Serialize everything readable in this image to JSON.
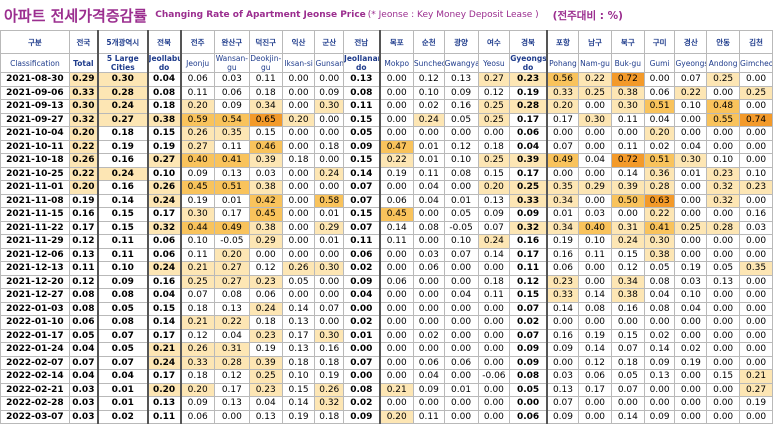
{
  "title": {
    "korean": "아파트 전세가격증감률",
    "english": "Changing Rate of Apartment Jeonse Price",
    "note": "(* Jeonse : Key Money Deposit Lease )",
    "unit": "(전주대비 : %)"
  },
  "header": {
    "kr": [
      "구분",
      "전국",
      "5개광역시",
      "전북",
      "전주",
      "완산구",
      "덕진구",
      "익산",
      "군산",
      "전남",
      "목포",
      "순천",
      "광양",
      "여수",
      "경북",
      "포항",
      "남구",
      "북구",
      "구미",
      "경산",
      "안동",
      "김천"
    ],
    "en": [
      "Classification",
      "Total",
      "5 Large Cities",
      "Jeollabuk-do",
      "Jeonju",
      "Wansan-gu",
      "Deokjin-gu",
      "Iksan-si",
      "Gunsan",
      "Jeollanam-do",
      "Mokpo",
      "Suncheon",
      "Gwangyang",
      "Yeosu",
      "Gyeongsangbuk-do",
      "Pohang",
      "Nam-gu",
      "Buk-gu",
      "Gumi",
      "Gyeongsan",
      "Andong",
      "Gimcheon"
    ]
  },
  "colors": {
    "light": "#fde6b4",
    "medium": "#f9c35c",
    "strong": "#f39a2a",
    "header_text": "#1f3c8c",
    "title_text": "#9b2e8f"
  },
  "rows": [
    {
      "date": "2021-08-30",
      "values": [
        "0.29",
        "0.30",
        "0.04",
        "0.06",
        "0.03",
        "0.11",
        "0.00",
        "0.00",
        "0.13",
        "0.00",
        "0.12",
        "0.13",
        "0.27",
        "0.23",
        "0.56",
        "0.22",
        "0.72",
        "0.00",
        "0.07",
        "0.25",
        "0.00"
      ]
    },
    {
      "date": "2021-09-06",
      "values": [
        "0.33",
        "0.28",
        "0.08",
        "0.11",
        "0.06",
        "0.18",
        "0.00",
        "0.09",
        "0.08",
        "0.00",
        "0.10",
        "0.09",
        "0.12",
        "0.19",
        "0.33",
        "0.25",
        "0.38",
        "0.06",
        "0.22",
        "0.00",
        "0.25"
      ]
    },
    {
      "date": "2021-09-13",
      "values": [
        "0.30",
        "0.24",
        "0.18",
        "0.20",
        "0.09",
        "0.34",
        "0.00",
        "0.30",
        "0.11",
        "0.00",
        "0.02",
        "0.16",
        "0.25",
        "0.28",
        "0.20",
        "0.00",
        "0.30",
        "0.51",
        "0.10",
        "0.48",
        "0.00"
      ]
    },
    {
      "date": "2021-09-27",
      "values": [
        "0.32",
        "0.27",
        "0.38",
        "0.59",
        "0.54",
        "0.65",
        "0.20",
        "0.00",
        "0.15",
        "0.00",
        "0.24",
        "0.05",
        "0.25",
        "0.17",
        "0.17",
        "0.30",
        "0.11",
        "0.04",
        "0.00",
        "0.55",
        "0.74"
      ]
    },
    {
      "date": "2021-10-04",
      "values": [
        "0.20",
        "0.18",
        "0.15",
        "0.26",
        "0.35",
        "0.15",
        "0.00",
        "0.00",
        "0.05",
        "0.00",
        "0.00",
        "0.00",
        "0.00",
        "0.06",
        "0.00",
        "0.00",
        "0.00",
        "0.20",
        "0.00",
        "0.00",
        "0.00"
      ]
    },
    {
      "date": "2021-10-11",
      "values": [
        "0.22",
        "0.19",
        "0.19",
        "0.27",
        "0.11",
        "0.46",
        "0.00",
        "0.18",
        "0.09",
        "0.47",
        "0.01",
        "0.12",
        "0.18",
        "0.04",
        "0.07",
        "0.00",
        "0.11",
        "0.02",
        "0.04",
        "0.00",
        "0.00"
      ]
    },
    {
      "date": "2021-10-18",
      "values": [
        "0.26",
        "0.16",
        "0.27",
        "0.40",
        "0.41",
        "0.39",
        "0.18",
        "0.00",
        "0.15",
        "0.22",
        "0.01",
        "0.10",
        "0.25",
        "0.39",
        "0.49",
        "0.04",
        "0.72",
        "0.51",
        "0.30",
        "0.10",
        "0.00"
      ]
    },
    {
      "date": "2021-10-25",
      "values": [
        "0.22",
        "0.24",
        "0.10",
        "0.09",
        "0.13",
        "0.03",
        "0.00",
        "0.24",
        "0.14",
        "0.19",
        "0.11",
        "0.08",
        "0.15",
        "0.17",
        "0.00",
        "0.00",
        "0.14",
        "0.36",
        "0.01",
        "0.23",
        "0.10"
      ]
    },
    {
      "date": "2021-11-01",
      "values": [
        "0.20",
        "0.16",
        "0.26",
        "0.45",
        "0.51",
        "0.38",
        "0.00",
        "0.00",
        "0.07",
        "0.00",
        "0.04",
        "0.00",
        "0.20",
        "0.25",
        "0.35",
        "0.29",
        "0.39",
        "0.28",
        "0.00",
        "0.32",
        "0.23"
      ]
    },
    {
      "date": "2021-11-08",
      "values": [
        "0.19",
        "0.14",
        "0.24",
        "0.19",
        "0.01",
        "0.42",
        "0.00",
        "0.58",
        "0.07",
        "0.06",
        "0.04",
        "0.01",
        "0.13",
        "0.33",
        "0.34",
        "0.00",
        "0.50",
        "0.63",
        "0.00",
        "0.32",
        "0.00"
      ]
    },
    {
      "date": "2021-11-15",
      "values": [
        "0.16",
        "0.15",
        "0.17",
        "0.30",
        "0.17",
        "0.45",
        "0.00",
        "0.01",
        "0.15",
        "0.45",
        "0.00",
        "0.05",
        "0.09",
        "0.09",
        "0.01",
        "0.03",
        "0.00",
        "0.22",
        "0.00",
        "0.00",
        "0.16"
      ]
    },
    {
      "date": "2021-11-22",
      "values": [
        "0.17",
        "0.15",
        "0.32",
        "0.44",
        "0.49",
        "0.38",
        "0.00",
        "0.29",
        "0.07",
        "0.14",
        "0.08",
        "-0.05",
        "0.07",
        "0.32",
        "0.34",
        "0.40",
        "0.31",
        "0.41",
        "0.25",
        "0.28",
        "0.03"
      ]
    },
    {
      "date": "2021-11-29",
      "values": [
        "0.12",
        "0.11",
        "0.06",
        "0.10",
        "-0.05",
        "0.29",
        "0.00",
        "0.01",
        "0.11",
        "0.11",
        "0.00",
        "0.10",
        "0.24",
        "0.16",
        "0.19",
        "0.10",
        "0.24",
        "0.30",
        "0.00",
        "0.00",
        "0.00"
      ]
    },
    {
      "date": "2021-12-06",
      "values": [
        "0.13",
        "0.11",
        "0.06",
        "0.11",
        "0.20",
        "0.00",
        "0.00",
        "0.00",
        "0.06",
        "0.00",
        "0.03",
        "0.07",
        "0.14",
        "0.17",
        "0.16",
        "0.11",
        "0.15",
        "0.38",
        "0.00",
        "0.00",
        "0.00"
      ]
    },
    {
      "date": "2021-12-13",
      "values": [
        "0.11",
        "0.10",
        "0.24",
        "0.21",
        "0.27",
        "0.12",
        "0.26",
        "0.30",
        "0.02",
        "0.00",
        "0.06",
        "0.00",
        "0.00",
        "0.11",
        "0.06",
        "0.00",
        "0.12",
        "0.05",
        "0.19",
        "0.05",
        "0.35"
      ]
    },
    {
      "date": "2021-12-20",
      "values": [
        "0.12",
        "0.09",
        "0.16",
        "0.25",
        "0.27",
        "0.23",
        "0.05",
        "0.00",
        "0.09",
        "0.06",
        "0.00",
        "0.00",
        "0.18",
        "0.12",
        "0.23",
        "0.00",
        "0.34",
        "0.08",
        "0.03",
        "0.13",
        "0.00"
      ]
    },
    {
      "date": "2021-12-27",
      "values": [
        "0.08",
        "0.08",
        "0.04",
        "0.07",
        "0.08",
        "0.06",
        "0.00",
        "0.00",
        "0.04",
        "0.00",
        "0.00",
        "0.04",
        "0.11",
        "0.15",
        "0.33",
        "0.14",
        "0.38",
        "0.04",
        "0.10",
        "0.00",
        "0.00"
      ]
    },
    {
      "date": "2022-01-03",
      "values": [
        "0.08",
        "0.05",
        "0.15",
        "0.18",
        "0.13",
        "0.24",
        "0.14",
        "0.07",
        "0.00",
        "0.00",
        "0.00",
        "0.00",
        "0.00",
        "0.07",
        "0.14",
        "0.08",
        "0.16",
        "0.08",
        "0.04",
        "0.00",
        "0.00"
      ]
    },
    {
      "date": "2022-01-10",
      "values": [
        "0.06",
        "0.08",
        "0.14",
        "0.21",
        "0.22",
        "0.18",
        "0.13",
        "0.00",
        "0.02",
        "0.00",
        "0.00",
        "0.00",
        "0.00",
        "0.02",
        "0.00",
        "0.00",
        "0.00",
        "0.00",
        "0.00",
        "0.00",
        "0.00"
      ]
    },
    {
      "date": "2022-01-17",
      "values": [
        "0.05",
        "0.07",
        "0.17",
        "0.12",
        "0.04",
        "0.23",
        "0.17",
        "0.30",
        "0.01",
        "0.00",
        "0.02",
        "0.00",
        "0.00",
        "0.07",
        "0.16",
        "0.19",
        "0.15",
        "0.02",
        "0.00",
        "0.00",
        "0.00"
      ]
    },
    {
      "date": "2022-01-24",
      "values": [
        "0.04",
        "0.05",
        "0.21",
        "0.26",
        "0.31",
        "0.19",
        "0.13",
        "0.16",
        "0.00",
        "0.00",
        "0.00",
        "0.00",
        "0.00",
        "0.09",
        "0.09",
        "0.14",
        "0.07",
        "0.14",
        "0.02",
        "0.00",
        "0.00"
      ]
    },
    {
      "date": "2022-02-07",
      "values": [
        "0.07",
        "0.07",
        "0.24",
        "0.33",
        "0.28",
        "0.39",
        "0.18",
        "0.18",
        "0.07",
        "0.00",
        "0.06",
        "0.06",
        "0.00",
        "0.09",
        "0.00",
        "0.12",
        "0.18",
        "0.09",
        "0.19",
        "0.00",
        "0.00"
      ]
    },
    {
      "date": "2022-02-14",
      "values": [
        "0.04",
        "0.04",
        "0.17",
        "0.18",
        "0.12",
        "0.25",
        "0.10",
        "0.19",
        "0.00",
        "0.00",
        "0.04",
        "0.00",
        "-0.06",
        "0.08",
        "0.03",
        "0.06",
        "0.05",
        "0.13",
        "0.00",
        "0.15",
        "0.21"
      ]
    },
    {
      "date": "2022-02-21",
      "values": [
        "0.03",
        "0.01",
        "0.20",
        "0.20",
        "0.17",
        "0.23",
        "0.15",
        "0.26",
        "0.08",
        "0.21",
        "0.09",
        "0.01",
        "0.00",
        "0.05",
        "0.13",
        "0.17",
        "0.07",
        "0.00",
        "0.00",
        "0.00",
        "0.27"
      ]
    },
    {
      "date": "2022-02-28",
      "values": [
        "0.03",
        "0.01",
        "0.13",
        "0.09",
        "0.13",
        "0.04",
        "0.14",
        "0.32",
        "0.02",
        "0.00",
        "0.00",
        "0.00",
        "0.00",
        "0.00",
        "0.07",
        "0.00",
        "0.00",
        "0.00",
        "0.00",
        "0.00",
        "0.19"
      ]
    },
    {
      "date": "2022-03-07",
      "values": [
        "0.03",
        "0.02",
        "0.11",
        "0.06",
        "0.00",
        "0.13",
        "0.19",
        "0.18",
        "0.09",
        "0.20",
        "0.11",
        "0.00",
        "0.00",
        "0.06",
        "0.09",
        "0.00",
        "0.14",
        "0.09",
        "0.00",
        "0.00",
        "0.00"
      ]
    }
  ]
}
